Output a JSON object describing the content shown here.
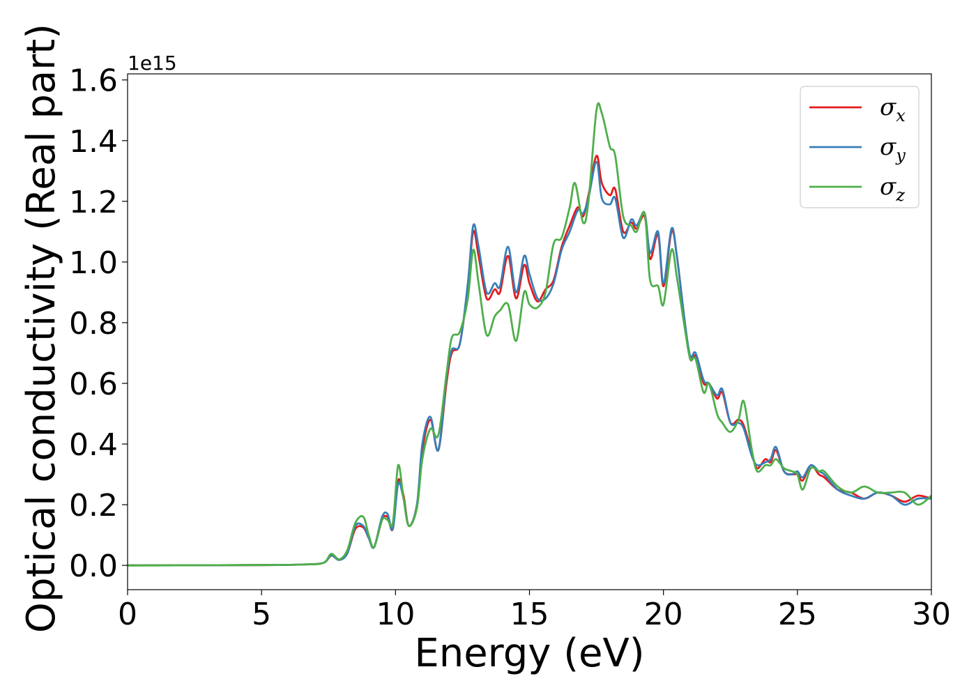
{
  "chart_data": {
    "type": "line",
    "xlabel": "Energy (eV)",
    "ylabel": "Optical conductivity (Real part)",
    "y_offset_text": "1e15",
    "xlim": [
      0,
      30
    ],
    "ylim": [
      -0.08,
      1.62
    ],
    "xticks": [
      0,
      5,
      10,
      15,
      20,
      25,
      30
    ],
    "xtick_labels": [
      "0",
      "5",
      "10",
      "15",
      "20",
      "25",
      "30"
    ],
    "yticks": [
      0.0,
      0.2,
      0.4,
      0.6,
      0.8,
      1.0,
      1.2,
      1.4,
      1.6
    ],
    "ytick_labels": [
      "0.0",
      "0.2",
      "0.4",
      "0.6",
      "0.8",
      "1.0",
      "1.2",
      "1.4",
      "1.6"
    ],
    "grid": false,
    "legend_position": "top-right",
    "series": [
      {
        "name": "σx",
        "symbol": "σ",
        "subscript": "x",
        "color": "#e41a1c",
        "points": [
          [
            0,
            0
          ],
          [
            5,
            0.001
          ],
          [
            6.5,
            0.003
          ],
          [
            7.3,
            0.008
          ],
          [
            7.6,
            0.032
          ],
          [
            7.9,
            0.018
          ],
          [
            8.2,
            0.04
          ],
          [
            8.5,
            0.12
          ],
          [
            8.8,
            0.125
          ],
          [
            9.0,
            0.09
          ],
          [
            9.2,
            0.06
          ],
          [
            9.5,
            0.15
          ],
          [
            9.7,
            0.16
          ],
          [
            9.9,
            0.12
          ],
          [
            10.1,
            0.28
          ],
          [
            10.3,
            0.23
          ],
          [
            10.5,
            0.13
          ],
          [
            10.8,
            0.2
          ],
          [
            11.0,
            0.38
          ],
          [
            11.3,
            0.48
          ],
          [
            11.6,
            0.38
          ],
          [
            11.9,
            0.6
          ],
          [
            12.1,
            0.7
          ],
          [
            12.4,
            0.73
          ],
          [
            12.7,
            0.92
          ],
          [
            12.9,
            1.1
          ],
          [
            13.1,
            1.02
          ],
          [
            13.4,
            0.88
          ],
          [
            13.7,
            0.91
          ],
          [
            13.9,
            0.9
          ],
          [
            14.2,
            1.02
          ],
          [
            14.5,
            0.88
          ],
          [
            14.8,
            0.99
          ],
          [
            15.0,
            0.93
          ],
          [
            15.3,
            0.87
          ],
          [
            15.6,
            0.91
          ],
          [
            15.9,
            0.94
          ],
          [
            16.2,
            1.05
          ],
          [
            16.5,
            1.12
          ],
          [
            16.8,
            1.18
          ],
          [
            17.0,
            1.15
          ],
          [
            17.2,
            1.22
          ],
          [
            17.5,
            1.35
          ],
          [
            17.7,
            1.26
          ],
          [
            18.0,
            1.22
          ],
          [
            18.2,
            1.24
          ],
          [
            18.5,
            1.1
          ],
          [
            18.8,
            1.13
          ],
          [
            19.0,
            1.11
          ],
          [
            19.3,
            1.15
          ],
          [
            19.5,
            1.01
          ],
          [
            19.8,
            1.09
          ],
          [
            20.0,
            0.92
          ],
          [
            20.3,
            1.1
          ],
          [
            20.5,
            1.02
          ],
          [
            20.8,
            0.8
          ],
          [
            21.0,
            0.68
          ],
          [
            21.2,
            0.69
          ],
          [
            21.5,
            0.6
          ],
          [
            21.7,
            0.6
          ],
          [
            22.0,
            0.55
          ],
          [
            22.2,
            0.57
          ],
          [
            22.5,
            0.47
          ],
          [
            22.8,
            0.48
          ],
          [
            23.0,
            0.46
          ],
          [
            23.3,
            0.37
          ],
          [
            23.5,
            0.32
          ],
          [
            23.8,
            0.35
          ],
          [
            24.0,
            0.34
          ],
          [
            24.2,
            0.38
          ],
          [
            24.5,
            0.31
          ],
          [
            24.8,
            0.3
          ],
          [
            25.0,
            0.3
          ],
          [
            25.2,
            0.28
          ],
          [
            25.5,
            0.33
          ],
          [
            25.8,
            0.3
          ],
          [
            26.0,
            0.29
          ],
          [
            26.5,
            0.25
          ],
          [
            27.0,
            0.24
          ],
          [
            27.5,
            0.22
          ],
          [
            28.0,
            0.24
          ],
          [
            28.5,
            0.23
          ],
          [
            29.0,
            0.21
          ],
          [
            29.5,
            0.23
          ],
          [
            30.0,
            0.22
          ]
        ]
      },
      {
        "name": "σy",
        "symbol": "σ",
        "subscript": "y",
        "color": "#377eb8",
        "points": [
          [
            0,
            0
          ],
          [
            5,
            0.001
          ],
          [
            6.5,
            0.003
          ],
          [
            7.3,
            0.008
          ],
          [
            7.6,
            0.033
          ],
          [
            7.9,
            0.018
          ],
          [
            8.2,
            0.04
          ],
          [
            8.5,
            0.13
          ],
          [
            8.8,
            0.13
          ],
          [
            9.0,
            0.09
          ],
          [
            9.2,
            0.06
          ],
          [
            9.5,
            0.16
          ],
          [
            9.7,
            0.17
          ],
          [
            9.9,
            0.12
          ],
          [
            10.1,
            0.27
          ],
          [
            10.3,
            0.22
          ],
          [
            10.5,
            0.13
          ],
          [
            10.8,
            0.2
          ],
          [
            11.0,
            0.4
          ],
          [
            11.3,
            0.49
          ],
          [
            11.6,
            0.38
          ],
          [
            11.9,
            0.62
          ],
          [
            12.1,
            0.71
          ],
          [
            12.4,
            0.73
          ],
          [
            12.7,
            0.93
          ],
          [
            12.9,
            1.12
          ],
          [
            13.1,
            1.05
          ],
          [
            13.4,
            0.9
          ],
          [
            13.7,
            0.93
          ],
          [
            13.9,
            0.92
          ],
          [
            14.2,
            1.05
          ],
          [
            14.5,
            0.9
          ],
          [
            14.8,
            1.02
          ],
          [
            15.0,
            0.96
          ],
          [
            15.3,
            0.88
          ],
          [
            15.6,
            0.88
          ],
          [
            15.9,
            0.93
          ],
          [
            16.2,
            1.04
          ],
          [
            16.5,
            1.1
          ],
          [
            16.8,
            1.17
          ],
          [
            17.0,
            1.16
          ],
          [
            17.2,
            1.21
          ],
          [
            17.5,
            1.33
          ],
          [
            17.7,
            1.21
          ],
          [
            18.0,
            1.19
          ],
          [
            18.2,
            1.21
          ],
          [
            18.5,
            1.08
          ],
          [
            18.8,
            1.14
          ],
          [
            19.0,
            1.12
          ],
          [
            19.3,
            1.16
          ],
          [
            19.5,
            1.03
          ],
          [
            19.8,
            1.1
          ],
          [
            20.0,
            0.93
          ],
          [
            20.3,
            1.11
          ],
          [
            20.5,
            1.02
          ],
          [
            20.8,
            0.8
          ],
          [
            21.0,
            0.69
          ],
          [
            21.2,
            0.7
          ],
          [
            21.5,
            0.61
          ],
          [
            21.7,
            0.6
          ],
          [
            22.0,
            0.56
          ],
          [
            22.2,
            0.58
          ],
          [
            22.5,
            0.47
          ],
          [
            22.8,
            0.47
          ],
          [
            23.0,
            0.45
          ],
          [
            23.3,
            0.36
          ],
          [
            23.5,
            0.33
          ],
          [
            23.8,
            0.34
          ],
          [
            24.0,
            0.35
          ],
          [
            24.2,
            0.39
          ],
          [
            24.5,
            0.31
          ],
          [
            24.8,
            0.3
          ],
          [
            25.0,
            0.31
          ],
          [
            25.2,
            0.29
          ],
          [
            25.5,
            0.33
          ],
          [
            25.8,
            0.31
          ],
          [
            26.0,
            0.3
          ],
          [
            26.5,
            0.25
          ],
          [
            27.0,
            0.23
          ],
          [
            27.5,
            0.22
          ],
          [
            28.0,
            0.24
          ],
          [
            28.5,
            0.23
          ],
          [
            29.0,
            0.2
          ],
          [
            29.5,
            0.22
          ],
          [
            30.0,
            0.22
          ]
        ]
      },
      {
        "name": "σz",
        "symbol": "σ",
        "subscript": "z",
        "color": "#4daf4a",
        "points": [
          [
            0,
            0
          ],
          [
            5,
            0.001
          ],
          [
            6.5,
            0.003
          ],
          [
            7.3,
            0.008
          ],
          [
            7.6,
            0.038
          ],
          [
            7.9,
            0.02
          ],
          [
            8.2,
            0.05
          ],
          [
            8.5,
            0.14
          ],
          [
            8.8,
            0.16
          ],
          [
            9.0,
            0.1
          ],
          [
            9.2,
            0.06
          ],
          [
            9.5,
            0.15
          ],
          [
            9.7,
            0.15
          ],
          [
            9.9,
            0.14
          ],
          [
            10.1,
            0.33
          ],
          [
            10.3,
            0.22
          ],
          [
            10.5,
            0.13
          ],
          [
            10.8,
            0.19
          ],
          [
            11.0,
            0.35
          ],
          [
            11.3,
            0.45
          ],
          [
            11.6,
            0.43
          ],
          [
            11.9,
            0.63
          ],
          [
            12.1,
            0.75
          ],
          [
            12.4,
            0.77
          ],
          [
            12.7,
            0.88
          ],
          [
            12.9,
            1.04
          ],
          [
            13.1,
            0.93
          ],
          [
            13.4,
            0.76
          ],
          [
            13.7,
            0.82
          ],
          [
            13.9,
            0.84
          ],
          [
            14.2,
            0.86
          ],
          [
            14.5,
            0.74
          ],
          [
            14.8,
            0.9
          ],
          [
            15.0,
            0.86
          ],
          [
            15.3,
            0.85
          ],
          [
            15.6,
            0.9
          ],
          [
            15.9,
            1.06
          ],
          [
            16.2,
            1.08
          ],
          [
            16.5,
            1.18
          ],
          [
            16.7,
            1.26
          ],
          [
            17.0,
            1.13
          ],
          [
            17.2,
            1.2
          ],
          [
            17.5,
            1.5
          ],
          [
            17.7,
            1.49
          ],
          [
            18.0,
            1.38
          ],
          [
            18.2,
            1.35
          ],
          [
            18.5,
            1.15
          ],
          [
            18.8,
            1.12
          ],
          [
            19.0,
            1.1
          ],
          [
            19.3,
            1.16
          ],
          [
            19.5,
            0.94
          ],
          [
            19.8,
            0.92
          ],
          [
            20.0,
            0.86
          ],
          [
            20.3,
            1.04
          ],
          [
            20.5,
            0.95
          ],
          [
            20.8,
            0.78
          ],
          [
            21.0,
            0.68
          ],
          [
            21.2,
            0.68
          ],
          [
            21.5,
            0.57
          ],
          [
            21.7,
            0.6
          ],
          [
            22.0,
            0.5
          ],
          [
            22.2,
            0.47
          ],
          [
            22.5,
            0.44
          ],
          [
            22.8,
            0.48
          ],
          [
            23.0,
            0.54
          ],
          [
            23.3,
            0.38
          ],
          [
            23.5,
            0.31
          ],
          [
            23.8,
            0.33
          ],
          [
            24.0,
            0.33
          ],
          [
            24.2,
            0.35
          ],
          [
            24.5,
            0.32
          ],
          [
            24.8,
            0.31
          ],
          [
            25.0,
            0.3
          ],
          [
            25.2,
            0.25
          ],
          [
            25.5,
            0.32
          ],
          [
            25.8,
            0.31
          ],
          [
            26.0,
            0.31
          ],
          [
            26.5,
            0.26
          ],
          [
            27.0,
            0.24
          ],
          [
            27.5,
            0.26
          ],
          [
            28.0,
            0.24
          ],
          [
            28.5,
            0.24
          ],
          [
            29.0,
            0.24
          ],
          [
            29.5,
            0.2
          ],
          [
            30.0,
            0.23
          ]
        ]
      }
    ]
  }
}
